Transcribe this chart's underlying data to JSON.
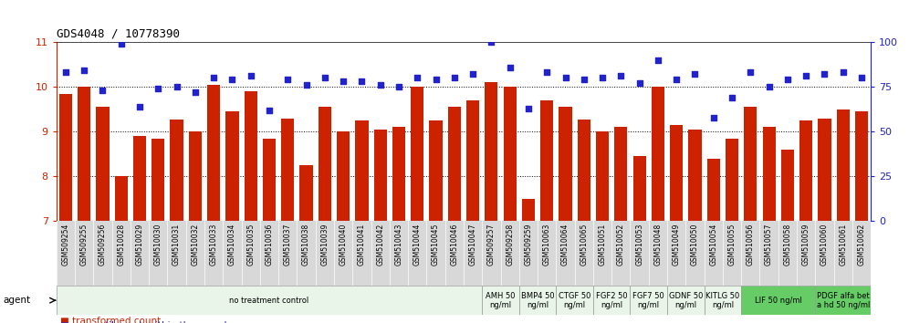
{
  "title": "GDS4048 / 10778390",
  "bar_color": "#cc2200",
  "dot_color": "#2222cc",
  "ylim_left": [
    7,
    11
  ],
  "ylim_right": [
    0,
    100
  ],
  "yticks_left": [
    7,
    8,
    9,
    10,
    11
  ],
  "yticks_right": [
    0,
    25,
    50,
    75,
    100
  ],
  "samples": [
    "GSM509254",
    "GSM509255",
    "GSM509256",
    "GSM510028",
    "GSM510029",
    "GSM510030",
    "GSM510031",
    "GSM510032",
    "GSM510033",
    "GSM510034",
    "GSM510035",
    "GSM510036",
    "GSM510037",
    "GSM510038",
    "GSM510039",
    "GSM510040",
    "GSM510041",
    "GSM510042",
    "GSM510043",
    "GSM510044",
    "GSM510045",
    "GSM510046",
    "GSM510047",
    "GSM509257",
    "GSM509258",
    "GSM509259",
    "GSM510063",
    "GSM510064",
    "GSM510065",
    "GSM510051",
    "GSM510052",
    "GSM510053",
    "GSM510048",
    "GSM510049",
    "GSM510050",
    "GSM510054",
    "GSM510055",
    "GSM510056",
    "GSM510057",
    "GSM510058",
    "GSM510059",
    "GSM510060",
    "GSM510061",
    "GSM510062"
  ],
  "bar_values": [
    9.85,
    10.0,
    9.55,
    8.0,
    8.9,
    8.85,
    9.28,
    9.0,
    10.05,
    9.45,
    9.9,
    8.85,
    9.3,
    8.25,
    9.55,
    9.0,
    9.25,
    9.05,
    9.1,
    10.0,
    9.25,
    9.55,
    9.7,
    10.1,
    10.0,
    7.5,
    9.7,
    9.55,
    9.28,
    9.0,
    9.1,
    8.45,
    10.0,
    9.15,
    9.05,
    8.4,
    8.85,
    9.55,
    9.1,
    8.6,
    9.25,
    9.3,
    9.5,
    9.45
  ],
  "dot_values": [
    83,
    84,
    73,
    99,
    64,
    74,
    75,
    72,
    80,
    79,
    81,
    62,
    79,
    76,
    80,
    78,
    78,
    76,
    75,
    80,
    79,
    80,
    82,
    100,
    86,
    63,
    83,
    80,
    79,
    80,
    81,
    77,
    90,
    79,
    82,
    58,
    69,
    83,
    75,
    79,
    81,
    82,
    83,
    80
  ],
  "agent_groups": [
    {
      "label": "no treatment control",
      "start": 0,
      "end": 23,
      "color": "#e8f5e8",
      "bright": false
    },
    {
      "label": "AMH 50\nng/ml",
      "start": 23,
      "end": 25,
      "color": "#e8f5e8",
      "bright": false
    },
    {
      "label": "BMP4 50\nng/ml",
      "start": 25,
      "end": 27,
      "color": "#e8f5e8",
      "bright": false
    },
    {
      "label": "CTGF 50\nng/ml",
      "start": 27,
      "end": 29,
      "color": "#e8f5e8",
      "bright": false
    },
    {
      "label": "FGF2 50\nng/ml",
      "start": 29,
      "end": 31,
      "color": "#e8f5e8",
      "bright": false
    },
    {
      "label": "FGF7 50\nng/ml",
      "start": 31,
      "end": 33,
      "color": "#e8f5e8",
      "bright": false
    },
    {
      "label": "GDNF 50\nng/ml",
      "start": 33,
      "end": 35,
      "color": "#e8f5e8",
      "bright": false
    },
    {
      "label": "KITLG 50\nng/ml",
      "start": 35,
      "end": 37,
      "color": "#e8f5e8",
      "bright": false
    },
    {
      "label": "LIF 50 ng/ml",
      "start": 37,
      "end": 41,
      "color": "#66cc66",
      "bright": true
    },
    {
      "label": "PDGF alfa bet\na hd 50 ng/ml",
      "start": 41,
      "end": 44,
      "color": "#66cc66",
      "bright": true
    }
  ],
  "xticklabel_bg": "#d8d8d8"
}
